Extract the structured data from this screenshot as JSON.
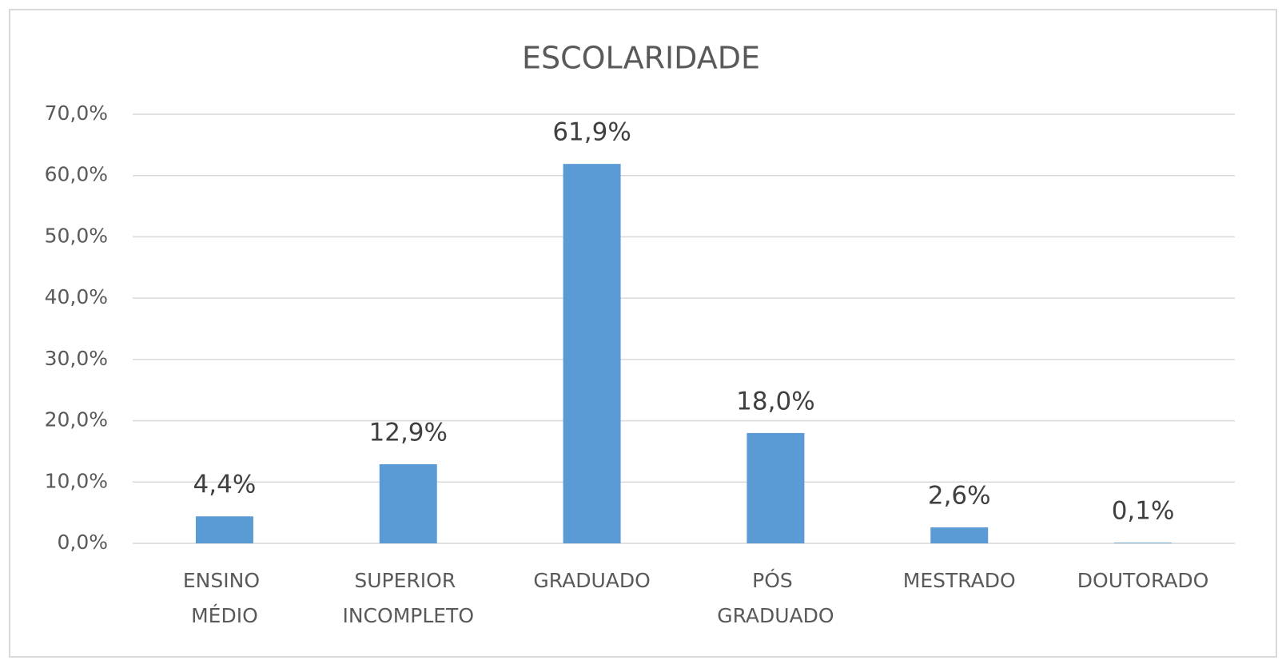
{
  "chart_data": {
    "type": "bar",
    "title": "ESCOLARIDADE",
    "categories": [
      "ENSINO MÉDIO",
      "SUPERIOR INCOMPLETO",
      "GRADUADO",
      "PÓS GRADUADO",
      "MESTRADO",
      "DOUTORADO"
    ],
    "values": [
      4.4,
      12.9,
      61.9,
      18.0,
      2.6,
      0.1
    ],
    "value_labels": [
      "4,4%",
      "12,9%",
      "61,9%",
      "18,0%",
      "2,6%",
      "0,1%"
    ],
    "color": "#5b9bd5",
    "ylim": [
      0,
      70
    ],
    "yticks": [
      {
        "value": 0,
        "label": "0,0%"
      },
      {
        "value": 10,
        "label": "10,0%"
      },
      {
        "value": 20,
        "label": "20,0%"
      },
      {
        "value": 30,
        "label": "30,0%"
      },
      {
        "value": 40,
        "label": "40,0%"
      },
      {
        "value": 50,
        "label": "50,0%"
      },
      {
        "value": 60,
        "label": "60,0%"
      },
      {
        "value": 70,
        "label": "70,0%"
      }
    ],
    "grid": true
  }
}
